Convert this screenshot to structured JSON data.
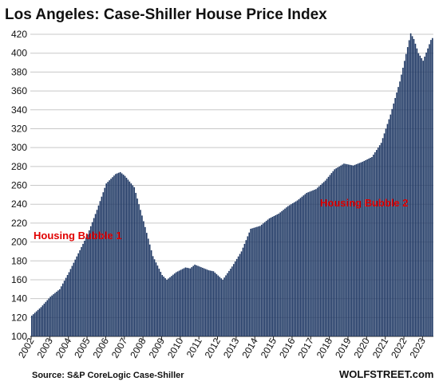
{
  "chart_data": {
    "type": "bar",
    "title": "Los Angeles: Case-Shiller House Price Index",
    "xlabel": "",
    "ylabel": "",
    "ylim": [
      100,
      420
    ],
    "y_ticks": [
      100,
      120,
      140,
      160,
      180,
      200,
      220,
      240,
      260,
      280,
      300,
      320,
      340,
      360,
      380,
      400,
      420
    ],
    "x_tick_labels": [
      "2002",
      "2003",
      "2004",
      "2005",
      "2006",
      "2007",
      "2008",
      "2009",
      "2010",
      "2011",
      "2012",
      "2013",
      "2014",
      "2015",
      "2016",
      "2017",
      "2018",
      "2019",
      "2020",
      "2021",
      "2022",
      "2023"
    ],
    "grid": true,
    "bar_color": "#1f3864",
    "series_anchors_monthly": [
      [
        "2002-01",
        122
      ],
      [
        "2002-07",
        131
      ],
      [
        "2003-01",
        142
      ],
      [
        "2003-07",
        150
      ],
      [
        "2004-01",
        168
      ],
      [
        "2004-07",
        188
      ],
      [
        "2005-01",
        208
      ],
      [
        "2005-07",
        234
      ],
      [
        "2006-01",
        262
      ],
      [
        "2006-07",
        272
      ],
      [
        "2006-10",
        274
      ],
      [
        "2007-01",
        270
      ],
      [
        "2007-07",
        258
      ],
      [
        "2008-01",
        222
      ],
      [
        "2008-07",
        185
      ],
      [
        "2009-01",
        165
      ],
      [
        "2009-04",
        160
      ],
      [
        "2009-10",
        168
      ],
      [
        "2010-04",
        173
      ],
      [
        "2010-07",
        172
      ],
      [
        "2010-10",
        176
      ],
      [
        "2011-01",
        174
      ],
      [
        "2011-07",
        170
      ],
      [
        "2011-10",
        169
      ],
      [
        "2012-04",
        160
      ],
      [
        "2012-10",
        174
      ],
      [
        "2013-04",
        190
      ],
      [
        "2013-10",
        214
      ],
      [
        "2014-04",
        217
      ],
      [
        "2014-10",
        225
      ],
      [
        "2015-04",
        230
      ],
      [
        "2015-10",
        238
      ],
      [
        "2016-04",
        244
      ],
      [
        "2016-10",
        252
      ],
      [
        "2017-04",
        256
      ],
      [
        "2017-10",
        265
      ],
      [
        "2018-04",
        277
      ],
      [
        "2018-10",
        283
      ],
      [
        "2019-04",
        281
      ],
      [
        "2019-10",
        285
      ],
      [
        "2020-04",
        290
      ],
      [
        "2020-10",
        305
      ],
      [
        "2021-04",
        335
      ],
      [
        "2021-10",
        370
      ],
      [
        "2022-05",
        421
      ],
      [
        "2022-07",
        415
      ],
      [
        "2022-10",
        400
      ],
      [
        "2023-01",
        392
      ],
      [
        "2023-04",
        405
      ],
      [
        "2023-06",
        414
      ],
      [
        "2023-07",
        416
      ]
    ],
    "annotations": [
      {
        "text": "Housing Bubble 1",
        "color": "#e00000"
      },
      {
        "text": "Housing Bubble 2",
        "color": "#e00000"
      }
    ]
  },
  "source": "Source: S&P CoreLogic Case-Shiller",
  "brand": "WOLFSTREET.com"
}
